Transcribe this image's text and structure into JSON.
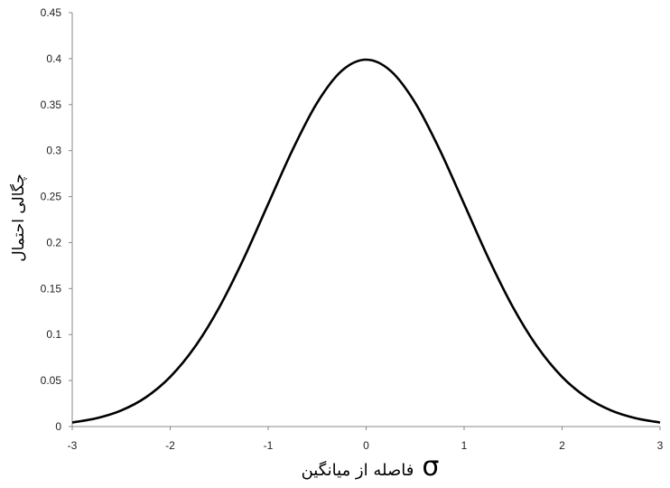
{
  "chart_data": {
    "type": "line",
    "title": "",
    "xlabel": "فاصله از میانگین σ",
    "xlabel_text": "فاصله از میانگین",
    "xlabel_symbol": "σ",
    "ylabel": "چگالی احتمال",
    "xlim": [
      -3,
      3
    ],
    "ylim": [
      0,
      0.45
    ],
    "x_ticks": [
      "-3",
      "-2",
      "-1",
      "0",
      "1",
      "2",
      "3"
    ],
    "y_ticks": [
      "0",
      "0.05",
      "0.1",
      "0.15",
      "0.2",
      "0.25",
      "0.3",
      "0.35",
      "0.4",
      "0.45"
    ],
    "grid": false,
    "legend": "none",
    "series": [
      {
        "color": "#000000",
        "x": [
          -3,
          -2.75,
          -2.5,
          -2.25,
          -2,
          -1.75,
          -1.5,
          -1.25,
          -1,
          -0.75,
          -0.5,
          -0.25,
          0,
          0.25,
          0.5,
          0.75,
          1,
          1.25,
          1.5,
          1.75,
          2,
          2.25,
          2.5,
          2.75,
          3
        ],
        "y": [
          0.0044,
          0.0091,
          0.0175,
          0.0317,
          0.054,
          0.0863,
          0.1295,
          0.1826,
          0.242,
          0.3011,
          0.3521,
          0.3867,
          0.3989,
          0.3867,
          0.3521,
          0.3011,
          0.242,
          0.1826,
          0.1295,
          0.0863,
          0.054,
          0.0317,
          0.0175,
          0.0091,
          0.0044
        ]
      }
    ]
  }
}
